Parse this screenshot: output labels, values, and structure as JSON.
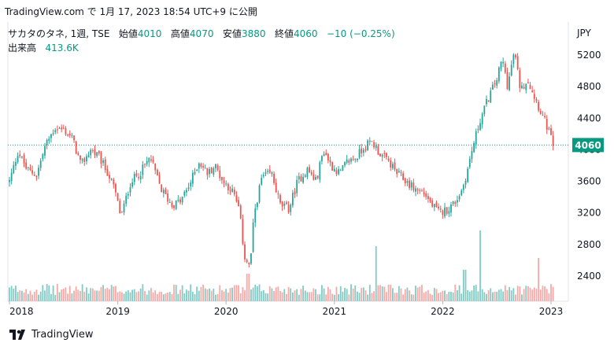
{
  "header": {
    "publish_text": "TradingView.com で 1月 17, 2023 18:54 UTC+9 に公開"
  },
  "legend": {
    "symbol": "サカタのタネ, 1週, TSE",
    "open_label": "始値",
    "open_value": "4010",
    "high_label": "高値",
    "high_value": "4070",
    "low_label": "安値",
    "low_value": "3880",
    "close_label": "終値",
    "close_value": "4060",
    "change": "−10 (−0.25%)",
    "volume_label": "出来高",
    "volume_value": "413.6K"
  },
  "footer": {
    "brand": "TradingView"
  },
  "colors": {
    "up": "#26a69a",
    "down": "#ef5350",
    "up_vol": "#80cbc4",
    "down_vol": "#f7a9a7",
    "price_label_bg": "#089981"
  },
  "chart_data": {
    "type": "candlestick",
    "currency": "JPY",
    "interval": "1 week",
    "last_price": "4060",
    "y_ticks": [
      "5200",
      "4800",
      "4400",
      "4000",
      "3600",
      "3200",
      "2800",
      "2400"
    ],
    "x_ticks": [
      "2018",
      "2019",
      "2020",
      "2021",
      "2022",
      "2023"
    ],
    "ylim": [
      2150,
      5450
    ],
    "series_close_anchors": [
      [
        2018.0,
        3600
      ],
      [
        2018.08,
        3980
      ],
      [
        2018.16,
        3750
      ],
      [
        2018.25,
        3680
      ],
      [
        2018.33,
        4050
      ],
      [
        2018.42,
        4280
      ],
      [
        2018.5,
        4250
      ],
      [
        2018.58,
        4150
      ],
      [
        2018.66,
        3800
      ],
      [
        2018.75,
        4000
      ],
      [
        2018.83,
        3900
      ],
      [
        2018.91,
        3700
      ],
      [
        2018.97,
        3500
      ],
      [
        2019.03,
        3150
      ],
      [
        2019.12,
        3600
      ],
      [
        2019.2,
        3700
      ],
      [
        2019.3,
        3900
      ],
      [
        2019.4,
        3500
      ],
      [
        2019.5,
        3300
      ],
      [
        2019.58,
        3350
      ],
      [
        2019.66,
        3550
      ],
      [
        2019.75,
        3850
      ],
      [
        2019.83,
        3700
      ],
      [
        2019.9,
        3800
      ],
      [
        2019.97,
        3600
      ],
      [
        2020.05,
        3500
      ],
      [
        2020.12,
        3250
      ],
      [
        2020.17,
        2650
      ],
      [
        2020.22,
        2500
      ],
      [
        2020.26,
        3200
      ],
      [
        2020.33,
        3650
      ],
      [
        2020.42,
        3700
      ],
      [
        2020.5,
        3300
      ],
      [
        2020.58,
        3250
      ],
      [
        2020.66,
        3600
      ],
      [
        2020.75,
        3750
      ],
      [
        2020.83,
        3600
      ],
      [
        2020.9,
        4000
      ],
      [
        2020.97,
        3800
      ],
      [
        2021.05,
        3700
      ],
      [
        2021.12,
        3850
      ],
      [
        2021.2,
        3900
      ],
      [
        2021.28,
        4050
      ],
      [
        2021.35,
        4100
      ],
      [
        2021.42,
        3950
      ],
      [
        2021.5,
        3850
      ],
      [
        2021.58,
        3700
      ],
      [
        2021.66,
        3600
      ],
      [
        2021.75,
        3500
      ],
      [
        2021.83,
        3450
      ],
      [
        2021.9,
        3300
      ],
      [
        2021.97,
        3200
      ],
      [
        2022.05,
        3250
      ],
      [
        2022.12,
        3350
      ],
      [
        2022.18,
        3500
      ],
      [
        2022.23,
        3750
      ],
      [
        2022.28,
        4050
      ],
      [
        2022.35,
        4400
      ],
      [
        2022.42,
        4650
      ],
      [
        2022.5,
        4900
      ],
      [
        2022.55,
        5150
      ],
      [
        2022.6,
        4800
      ],
      [
        2022.66,
        5250
      ],
      [
        2022.72,
        4750
      ],
      [
        2022.78,
        4900
      ],
      [
        2022.84,
        4700
      ],
      [
        2022.9,
        4500
      ],
      [
        2022.96,
        4300
      ],
      [
        2023.02,
        4060
      ]
    ]
  }
}
